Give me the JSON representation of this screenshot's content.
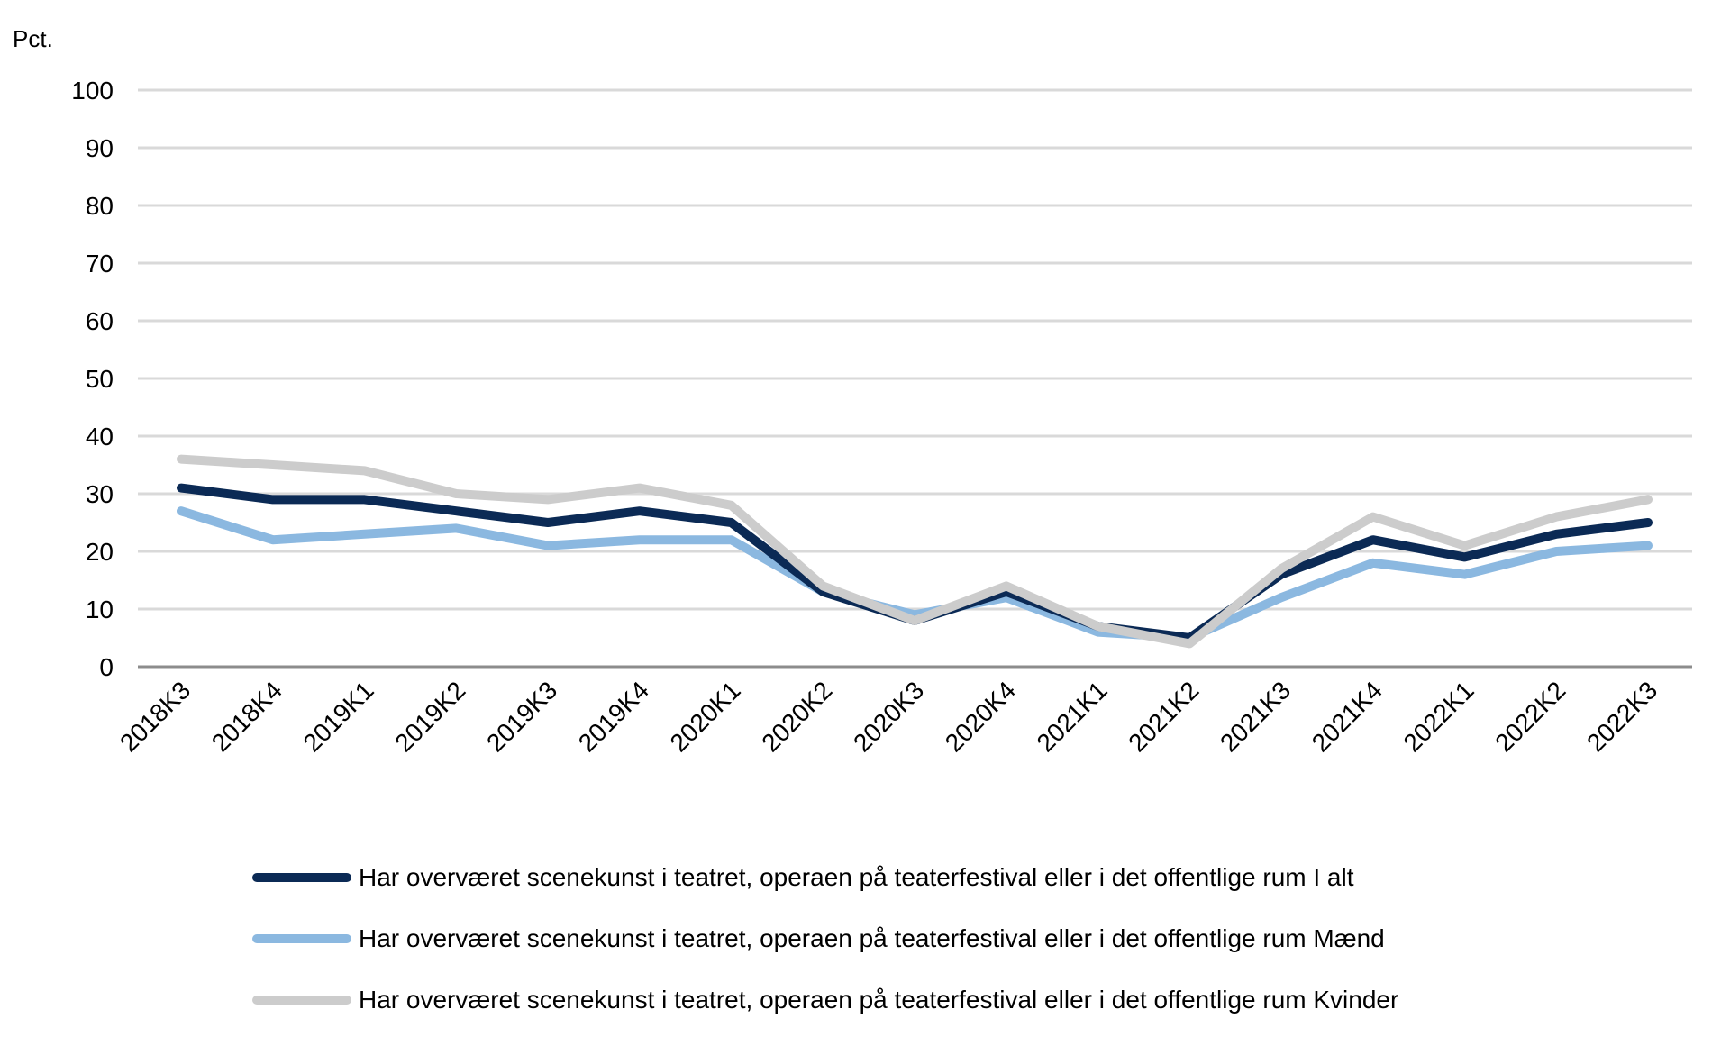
{
  "chart_data": {
    "type": "line",
    "ylabel": "Pct.",
    "ylim": [
      0,
      100
    ],
    "yticks": [
      0,
      10,
      20,
      30,
      40,
      50,
      60,
      70,
      80,
      90,
      100
    ],
    "grid": true,
    "legend_position": "bottom",
    "categories": [
      "2018K3",
      "2018K4",
      "2019K1",
      "2019K2",
      "2019K3",
      "2019K4",
      "2020K1",
      "2020K2",
      "2020K3",
      "2020K4",
      "2021K1",
      "2021K2",
      "2021K3",
      "2021K4",
      "2022K1",
      "2022K2",
      "2022K3"
    ],
    "series": [
      {
        "name": "Har overværet scenekunst i teatret, operaen på teaterfestival eller i det offentlige rum I alt",
        "color": "#0b2a55",
        "values": [
          31,
          29,
          29,
          27,
          25,
          27,
          25,
          13,
          8,
          13,
          7,
          5,
          16,
          22,
          19,
          23,
          25
        ]
      },
      {
        "name": "Har overværet scenekunst i teatret, operaen på teaterfestival eller i det offentlige rum Mænd",
        "color": "#8bb8e0",
        "values": [
          27,
          22,
          23,
          24,
          21,
          22,
          22,
          13,
          9,
          12,
          6,
          5,
          12,
          18,
          16,
          20,
          21
        ]
      },
      {
        "name": "Har overværet scenekunst i teatret, operaen på teaterfestival eller i det offentlige rum Kvinder",
        "color": "#cccccc",
        "values": [
          36,
          35,
          34,
          30,
          29,
          31,
          28,
          14,
          8,
          14,
          7,
          4,
          17,
          26,
          21,
          26,
          29
        ]
      }
    ]
  }
}
